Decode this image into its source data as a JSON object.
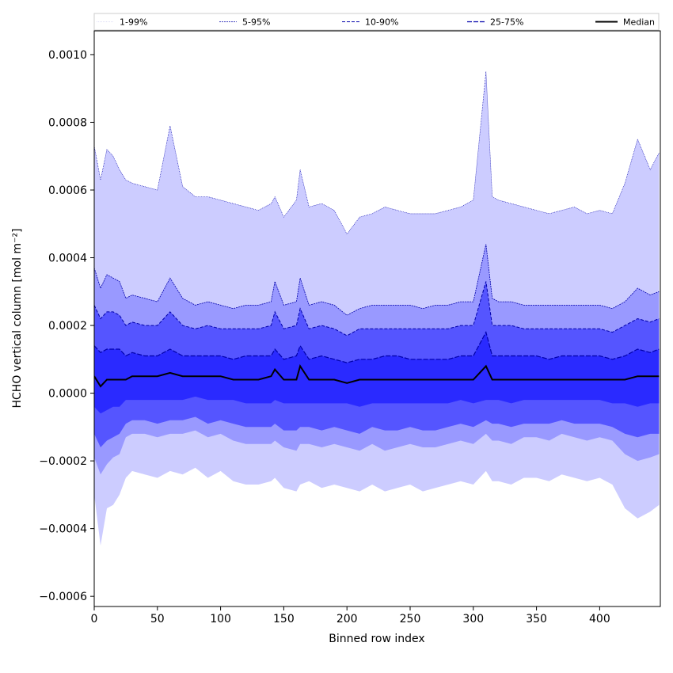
{
  "chart_data": {
    "type": "area",
    "title": "",
    "xlabel": "Binned row index",
    "ylabel": "HCHO vertical column [mol m⁻²]",
    "xlim": [
      0,
      448
    ],
    "ylim": [
      -0.00063,
      0.00107
    ],
    "x_ticks": [
      0,
      50,
      100,
      150,
      200,
      250,
      300,
      350,
      400
    ],
    "x_tick_labels": [
      "0",
      "50",
      "100",
      "150",
      "200",
      "250",
      "300",
      "350",
      "400"
    ],
    "y_ticks": [
      -0.0006,
      -0.0004,
      -0.0002,
      0.0,
      0.0002,
      0.0004,
      0.0006,
      0.0008,
      0.001
    ],
    "y_tick_labels": [
      "−0.0006",
      "−0.0004",
      "−0.0002",
      "0.0000",
      "0.0002",
      "0.0004",
      "0.0006",
      "0.0008",
      "0.0010"
    ],
    "grid": false,
    "legend_position": "top",
    "x": [
      0,
      5,
      10,
      15,
      20,
      25,
      30,
      40,
      50,
      60,
      70,
      80,
      90,
      100,
      110,
      120,
      130,
      140,
      143,
      150,
      160,
      163,
      170,
      180,
      190,
      200,
      210,
      220,
      230,
      240,
      250,
      260,
      270,
      280,
      290,
      300,
      310,
      315,
      320,
      330,
      340,
      350,
      360,
      370,
      380,
      390,
      400,
      410,
      420,
      430,
      440,
      447
    ],
    "series": [
      {
        "name": "1-99%",
        "lower": [
          -0.0003,
          -0.00045,
          -0.00034,
          -0.00033,
          -0.0003,
          -0.00025,
          -0.00023,
          -0.00024,
          -0.00025,
          -0.00023,
          -0.00024,
          -0.00022,
          -0.00025,
          -0.00023,
          -0.00026,
          -0.00027,
          -0.00027,
          -0.00026,
          -0.00025,
          -0.00028,
          -0.00029,
          -0.00027,
          -0.00026,
          -0.00028,
          -0.00027,
          -0.00028,
          -0.00029,
          -0.00027,
          -0.00029,
          -0.00028,
          -0.00027,
          -0.00029,
          -0.00028,
          -0.00027,
          -0.00026,
          -0.00027,
          -0.00023,
          -0.00026,
          -0.00026,
          -0.00027,
          -0.00025,
          -0.00025,
          -0.00026,
          -0.00024,
          -0.00025,
          -0.00026,
          -0.00025,
          -0.00027,
          -0.00034,
          -0.00037,
          -0.00035,
          -0.00033
        ],
        "upper": [
          0.00073,
          0.00063,
          0.00072,
          0.0007,
          0.00066,
          0.00063,
          0.00062,
          0.00061,
          0.0006,
          0.00079,
          0.00061,
          0.00058,
          0.00058,
          0.00057,
          0.00056,
          0.00055,
          0.00054,
          0.00056,
          0.00058,
          0.00052,
          0.00057,
          0.00066,
          0.00055,
          0.00056,
          0.00054,
          0.00047,
          0.00052,
          0.00053,
          0.00055,
          0.00054,
          0.00053,
          0.00053,
          0.00053,
          0.00054,
          0.00055,
          0.00057,
          0.00095,
          0.00058,
          0.00057,
          0.00056,
          0.00055,
          0.00054,
          0.00053,
          0.00054,
          0.00055,
          0.00053,
          0.00054,
          0.00053,
          0.00062,
          0.00075,
          0.00066,
          0.00071
        ]
      },
      {
        "name": "5-95%",
        "lower": [
          -0.00019,
          -0.00024,
          -0.00021,
          -0.00019,
          -0.00018,
          -0.00013,
          -0.00012,
          -0.00012,
          -0.00013,
          -0.00012,
          -0.00012,
          -0.00011,
          -0.00013,
          -0.00012,
          -0.00014,
          -0.00015,
          -0.00015,
          -0.00015,
          -0.00014,
          -0.00016,
          -0.00017,
          -0.00015,
          -0.00015,
          -0.00016,
          -0.00015,
          -0.00016,
          -0.00017,
          -0.00015,
          -0.00017,
          -0.00016,
          -0.00015,
          -0.00016,
          -0.00016,
          -0.00015,
          -0.00014,
          -0.00015,
          -0.00012,
          -0.00014,
          -0.00014,
          -0.00015,
          -0.00013,
          -0.00013,
          -0.00014,
          -0.00012,
          -0.00013,
          -0.00014,
          -0.00013,
          -0.00014,
          -0.00018,
          -0.0002,
          -0.00019,
          -0.00018
        ],
        "upper": [
          0.00037,
          0.00031,
          0.00035,
          0.00034,
          0.00033,
          0.00028,
          0.00029,
          0.00028,
          0.00027,
          0.00034,
          0.00028,
          0.00026,
          0.00027,
          0.00026,
          0.00025,
          0.00026,
          0.00026,
          0.00027,
          0.00033,
          0.00026,
          0.00027,
          0.00034,
          0.00026,
          0.00027,
          0.00026,
          0.00023,
          0.00025,
          0.00026,
          0.00026,
          0.00026,
          0.00026,
          0.00025,
          0.00026,
          0.00026,
          0.00027,
          0.00027,
          0.00044,
          0.00028,
          0.00027,
          0.00027,
          0.00026,
          0.00026,
          0.00026,
          0.00026,
          0.00026,
          0.00026,
          0.00026,
          0.00025,
          0.00027,
          0.00031,
          0.00029,
          0.0003
        ]
      },
      {
        "name": "10-90%",
        "lower": [
          -0.00012,
          -0.00016,
          -0.00014,
          -0.00013,
          -0.00012,
          -9e-05,
          -8e-05,
          -8e-05,
          -9e-05,
          -8e-05,
          -8e-05,
          -7e-05,
          -9e-05,
          -8e-05,
          -9e-05,
          -0.0001,
          -0.0001,
          -0.0001,
          -9e-05,
          -0.00011,
          -0.00011,
          -0.0001,
          -0.0001,
          -0.00011,
          -0.0001,
          -0.00011,
          -0.00012,
          -0.0001,
          -0.00011,
          -0.00011,
          -0.0001,
          -0.00011,
          -0.00011,
          -0.0001,
          -9e-05,
          -0.0001,
          -8e-05,
          -9e-05,
          -9e-05,
          -0.0001,
          -9e-05,
          -9e-05,
          -9e-05,
          -8e-05,
          -9e-05,
          -9e-05,
          -9e-05,
          -0.0001,
          -0.00012,
          -0.00013,
          -0.00012,
          -0.00012
        ],
        "upper": [
          0.00026,
          0.00022,
          0.00024,
          0.00024,
          0.00023,
          0.0002,
          0.00021,
          0.0002,
          0.0002,
          0.00024,
          0.0002,
          0.00019,
          0.0002,
          0.00019,
          0.00019,
          0.00019,
          0.00019,
          0.0002,
          0.00024,
          0.00019,
          0.0002,
          0.00025,
          0.00019,
          0.0002,
          0.00019,
          0.00017,
          0.00019,
          0.00019,
          0.00019,
          0.00019,
          0.00019,
          0.00019,
          0.00019,
          0.00019,
          0.0002,
          0.0002,
          0.00033,
          0.0002,
          0.0002,
          0.0002,
          0.00019,
          0.00019,
          0.00019,
          0.00019,
          0.00019,
          0.00019,
          0.00019,
          0.00018,
          0.0002,
          0.00022,
          0.00021,
          0.00022
        ]
      },
      {
        "name": "25-75%",
        "lower": [
          -4e-05,
          -6e-05,
          -5e-05,
          -4e-05,
          -4e-05,
          -2e-05,
          -2e-05,
          -2e-05,
          -2e-05,
          -2e-05,
          -2e-05,
          -1e-05,
          -2e-05,
          -2e-05,
          -2e-05,
          -3e-05,
          -3e-05,
          -3e-05,
          -2e-05,
          -3e-05,
          -3e-05,
          -3e-05,
          -3e-05,
          -3e-05,
          -3e-05,
          -3e-05,
          -4e-05,
          -3e-05,
          -3e-05,
          -3e-05,
          -3e-05,
          -3e-05,
          -3e-05,
          -3e-05,
          -2e-05,
          -3e-05,
          -2e-05,
          -2e-05,
          -2e-05,
          -3e-05,
          -2e-05,
          -2e-05,
          -2e-05,
          -2e-05,
          -2e-05,
          -2e-05,
          -2e-05,
          -3e-05,
          -3e-05,
          -4e-05,
          -3e-05,
          -3e-05
        ],
        "upper": [
          0.00014,
          0.00012,
          0.00013,
          0.00013,
          0.00013,
          0.00011,
          0.00012,
          0.00011,
          0.00011,
          0.00013,
          0.00011,
          0.00011,
          0.00011,
          0.00011,
          0.0001,
          0.00011,
          0.00011,
          0.00011,
          0.00013,
          0.0001,
          0.00011,
          0.00014,
          0.0001,
          0.00011,
          0.0001,
          9e-05,
          0.0001,
          0.0001,
          0.00011,
          0.00011,
          0.0001,
          0.0001,
          0.0001,
          0.0001,
          0.00011,
          0.00011,
          0.00018,
          0.00011,
          0.00011,
          0.00011,
          0.00011,
          0.00011,
          0.0001,
          0.00011,
          0.00011,
          0.00011,
          0.00011,
          0.0001,
          0.00011,
          0.00013,
          0.00012,
          0.00013
        ]
      },
      {
        "name": "Median",
        "values": [
          5e-05,
          2e-05,
          4e-05,
          4e-05,
          4e-05,
          4e-05,
          5e-05,
          5e-05,
          5e-05,
          6e-05,
          5e-05,
          5e-05,
          5e-05,
          5e-05,
          4e-05,
          4e-05,
          4e-05,
          5e-05,
          7e-05,
          4e-05,
          4e-05,
          8e-05,
          4e-05,
          4e-05,
          4e-05,
          3e-05,
          4e-05,
          4e-05,
          4e-05,
          4e-05,
          4e-05,
          4e-05,
          4e-05,
          4e-05,
          4e-05,
          4e-05,
          8e-05,
          4e-05,
          4e-05,
          4e-05,
          4e-05,
          4e-05,
          4e-05,
          4e-05,
          4e-05,
          4e-05,
          4e-05,
          4e-05,
          4e-05,
          5e-05,
          5e-05,
          5e-05
        ]
      }
    ],
    "colors": {
      "band_1_99": "#ccccff",
      "band_5_95": "#9999ff",
      "band_10_90": "#5555ff",
      "band_25_75": "#2a2aff",
      "edge_line": "#0000aa",
      "median": "#000000"
    }
  }
}
